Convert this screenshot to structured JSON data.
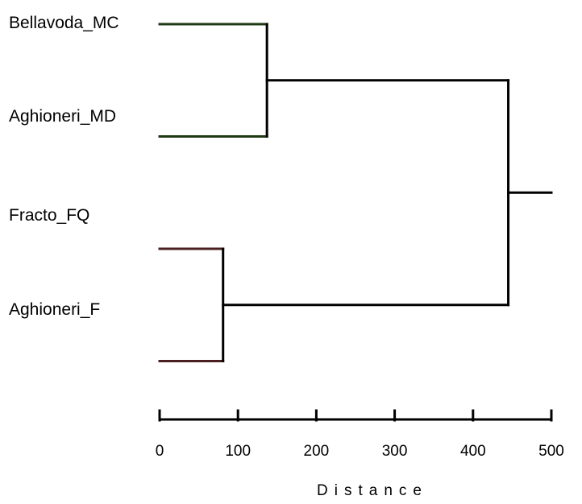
{
  "chart_data": {
    "type": "dendrogram",
    "xlabel": "Distance",
    "xlim": [
      0,
      500
    ],
    "ticks": [
      0,
      100,
      200,
      300,
      400,
      500
    ],
    "tick_labels": [
      "0",
      "100",
      "200",
      "300",
      "400",
      "500"
    ],
    "labels": [
      "Bellavoda_MC",
      "Aghioneri_MD",
      "Fracto_FQ",
      "Aghioneri_F"
    ],
    "leaves": [
      {
        "id": "L1",
        "slot": 0.5,
        "color": "#1e3a14"
      },
      {
        "id": "L2",
        "slot": 1.5,
        "color": "#1e3a14"
      },
      {
        "id": "L3",
        "slot": 2.5,
        "color": "#4a1f1f"
      },
      {
        "id": "L4",
        "slot": 3.5,
        "color": "#4a1f1f"
      }
    ],
    "merges": [
      {
        "id": "A",
        "children": [
          "L1",
          "L2"
        ],
        "height": 137
      },
      {
        "id": "B",
        "children": [
          "L3",
          "L4"
        ],
        "height": 81
      },
      {
        "id": "R",
        "children": [
          "A",
          "B"
        ],
        "height": 445
      }
    ],
    "root_stub_to": 500,
    "colors": {
      "link": "#000000"
    }
  }
}
